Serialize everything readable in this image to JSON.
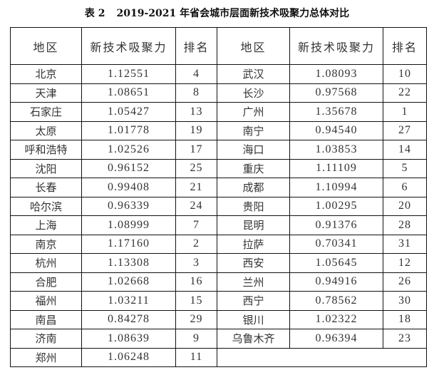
{
  "title": {
    "label": "表 2",
    "text": "2019-2021 年省会城市层面新技术吸聚力总体对比"
  },
  "headers": [
    "地区",
    "新技术吸聚力",
    "排名",
    "地区",
    "新技术吸聚力",
    "排名"
  ],
  "rows": [
    [
      "北京",
      "1.12551",
      "4",
      "武汉",
      "1.08093",
      "10"
    ],
    [
      "天津",
      "1.08651",
      "8",
      "长沙",
      "0.97568",
      "22"
    ],
    [
      "石家庄",
      "1.05427",
      "13",
      "广州",
      "1.35678",
      "1"
    ],
    [
      "太原",
      "1.01778",
      "19",
      "南宁",
      "0.94540",
      "27"
    ],
    [
      "呼和浩特",
      "1.02526",
      "17",
      "海口",
      "1.03853",
      "14"
    ],
    [
      "沈阳",
      "0.96152",
      "25",
      "重庆",
      "1.11109",
      "5"
    ],
    [
      "长春",
      "0.99408",
      "21",
      "成都",
      "1.10994",
      "6"
    ],
    [
      "哈尔滨",
      "0.96339",
      "24",
      "贵阳",
      "1.00295",
      "20"
    ],
    [
      "上海",
      "1.08999",
      "7",
      "昆明",
      "0.91376",
      "28"
    ],
    [
      "南京",
      "1.17160",
      "2",
      "拉萨",
      "0.70341",
      "31"
    ],
    [
      "杭州",
      "1.13308",
      "3",
      "西安",
      "1.05645",
      "12"
    ],
    [
      "合肥",
      "1.02668",
      "16",
      "兰州",
      "0.94916",
      "26"
    ],
    [
      "福州",
      "1.03211",
      "15",
      "西宁",
      "0.78562",
      "30"
    ],
    [
      "南昌",
      "0.84278",
      "29",
      "银川",
      "1.02322",
      "18"
    ],
    [
      "济南",
      "1.08639",
      "9",
      "乌鲁木齐",
      "0.96394",
      "23"
    ],
    [
      "郑州",
      "1.06248",
      "11",
      "",
      "",
      ""
    ]
  ]
}
